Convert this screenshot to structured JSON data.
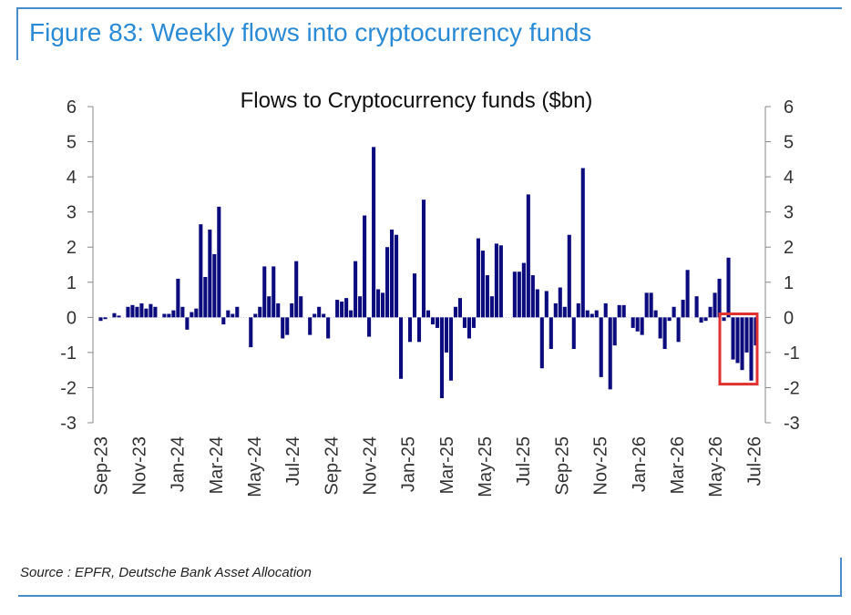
{
  "figure": {
    "title": "Figure 83: Weekly flows into cryptocurrency funds",
    "source": "Source : EPFR, Deutsche Bank Asset Allocation"
  },
  "colors": {
    "bar": "#0b0b7e",
    "frame": "#4a8cc9",
    "title": "#2b8ad6",
    "highlight": "#e03030",
    "axis": "#888888"
  },
  "chart_data": {
    "type": "bar",
    "title": "Flows to Cryptocurrency funds ($bn)",
    "xlabel": "",
    "ylabel": "",
    "ylim": [
      -3,
      6
    ],
    "yticks": [
      -3,
      -2,
      -1,
      0,
      1,
      2,
      3,
      4,
      5,
      6
    ],
    "xlim": [
      "2023-09",
      "2026-07"
    ],
    "xticks": [
      "Sep-23",
      "Nov-23",
      "Jan-24",
      "Mar-24",
      "May-24",
      "Jul-24",
      "Sep-24",
      "Nov-24",
      "Jan-25",
      "Mar-25",
      "May-25",
      "Jul-25",
      "Sep-25",
      "Nov-25",
      "Jan-26",
      "Mar-26",
      "May-26",
      "Jul-26"
    ],
    "grid": false,
    "frequency": "weekly",
    "highlight": {
      "label": "red box",
      "x_range": [
        "2026-05",
        "2026-06"
      ],
      "y_range": [
        -1.9,
        0.1
      ]
    },
    "values": [
      -0.1,
      -0.05,
      0.0,
      0.12,
      0.05,
      0.0,
      0.3,
      0.35,
      0.3,
      0.4,
      0.25,
      0.38,
      0.3,
      0.0,
      0.1,
      0.1,
      0.2,
      1.1,
      0.3,
      -0.35,
      0.15,
      0.25,
      2.65,
      1.15,
      2.5,
      1.8,
      3.15,
      -0.2,
      0.2,
      0.1,
      0.3,
      0.0,
      0.0,
      -0.85,
      0.1,
      0.3,
      1.45,
      0.6,
      1.45,
      0.4,
      -0.6,
      -0.5,
      0.4,
      1.6,
      0.6,
      0.0,
      -0.5,
      0.1,
      0.3,
      0.1,
      -0.6,
      0.0,
      0.5,
      0.45,
      0.55,
      0.2,
      1.6,
      0.6,
      2.9,
      -0.55,
      4.85,
      0.8,
      0.7,
      2.0,
      2.5,
      2.35,
      -1.75,
      0.0,
      -0.7,
      1.25,
      -0.7,
      3.35,
      0.2,
      -0.2,
      -0.3,
      -2.3,
      -1.0,
      -1.8,
      0.3,
      0.55,
      -0.3,
      -0.6,
      -0.3,
      2.25,
      1.9,
      1.2,
      0.6,
      2.1,
      2.05,
      0.0,
      0.0,
      1.3,
      1.3,
      1.55,
      3.5,
      1.2,
      0.8,
      -1.45,
      0.75,
      -0.9,
      0.4,
      0.85,
      0.3,
      2.35,
      -0.9,
      0.4,
      4.25,
      0.2,
      0.1,
      0.2,
      -1.7,
      0.4,
      -2.05,
      -0.8,
      0.35,
      0.35,
      0.0,
      -0.3,
      -0.4,
      -0.5,
      0.7,
      0.7,
      0.2,
      -0.6,
      -0.9,
      -0.1,
      0.3,
      -0.7,
      0.5,
      1.35,
      0.0,
      0.6,
      -0.15,
      -0.1,
      0.3,
      0.7,
      1.1,
      -0.1,
      1.7,
      -1.2,
      -1.3,
      -1.5,
      -1.0,
      -1.8,
      -0.8
    ]
  }
}
